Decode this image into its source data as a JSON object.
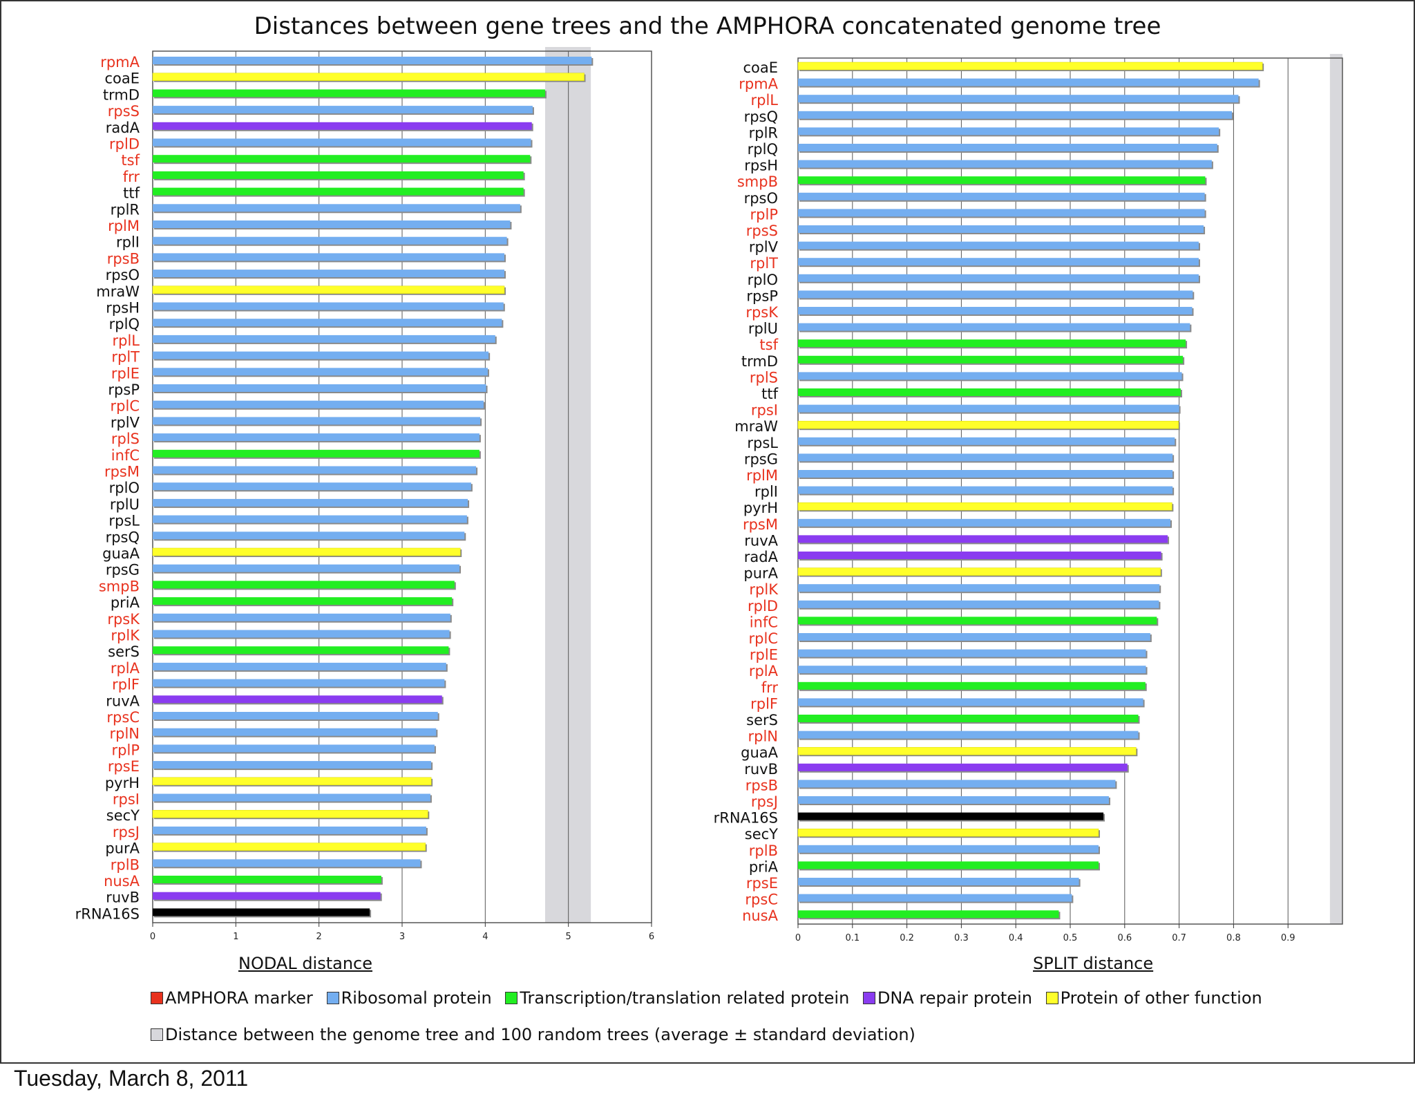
{
  "title": "Distances between gene trees and the AMPHORA concatenated genome tree",
  "colors": {
    "amphora_label": "#e8321e",
    "other_label": "#111111",
    "ribosomal": "#74aef0",
    "transcription": "#22ee22",
    "dna_repair": "#8a3cf0",
    "other_function": "#ffff2a",
    "rrna": "#000000",
    "random_band": "#d8d8dc"
  },
  "legend": {
    "row1": [
      {
        "label": "AMPHORA marker",
        "color": "#e8321e"
      },
      {
        "label": "Ribosomal protein",
        "color": "#74aef0"
      },
      {
        "label": "Transcription/translation related protein",
        "color": "#22ee22"
      },
      {
        "label": "DNA repair protein",
        "color": "#8a3cf0"
      },
      {
        "label": "Protein of other function",
        "color": "#ffff2a"
      }
    ],
    "row2": [
      {
        "label": "Distance between the genome tree and 100 random trees (average ± standard deviation)",
        "color": "#d8d8dc"
      }
    ]
  },
  "footer": {
    "date": "Tuesday, March 8, 2011"
  },
  "chart_data": [
    {
      "type": "bar",
      "orientation": "horizontal",
      "xlabel": "NODAL distance",
      "xlim": [
        0,
        6
      ],
      "xticks": [
        "0",
        "1",
        "2",
        "3",
        "4",
        "5",
        "6"
      ],
      "random_band": {
        "mean": 5.0,
        "low": 4.72,
        "high": 5.27
      },
      "bars": [
        {
          "gene": "rpmA",
          "value": 5.28,
          "cat": "ribosomal",
          "amphora": true
        },
        {
          "gene": "coaE",
          "value": 5.19,
          "cat": "other_function",
          "amphora": false
        },
        {
          "gene": "trmD",
          "value": 4.72,
          "cat": "transcription",
          "amphora": false
        },
        {
          "gene": "rpsS",
          "value": 4.57,
          "cat": "ribosomal",
          "amphora": true
        },
        {
          "gene": "radA",
          "value": 4.56,
          "cat": "dna_repair",
          "amphora": false
        },
        {
          "gene": "rplD",
          "value": 4.55,
          "cat": "ribosomal",
          "amphora": true
        },
        {
          "gene": "tsf",
          "value": 4.54,
          "cat": "transcription",
          "amphora": true
        },
        {
          "gene": "frr",
          "value": 4.46,
          "cat": "transcription",
          "amphora": true
        },
        {
          "gene": "ttf",
          "value": 4.46,
          "cat": "transcription",
          "amphora": false
        },
        {
          "gene": "rplR",
          "value": 4.42,
          "cat": "ribosomal",
          "amphora": false
        },
        {
          "gene": "rplM",
          "value": 4.3,
          "cat": "ribosomal",
          "amphora": true
        },
        {
          "gene": "rplI",
          "value": 4.26,
          "cat": "ribosomal",
          "amphora": false
        },
        {
          "gene": "rpsB",
          "value": 4.23,
          "cat": "ribosomal",
          "amphora": true
        },
        {
          "gene": "rpsO",
          "value": 4.23,
          "cat": "ribosomal",
          "amphora": false
        },
        {
          "gene": "mraW",
          "value": 4.23,
          "cat": "other_function",
          "amphora": false
        },
        {
          "gene": "rpsH",
          "value": 4.22,
          "cat": "ribosomal",
          "amphora": false
        },
        {
          "gene": "rplQ",
          "value": 4.2,
          "cat": "ribosomal",
          "amphora": false
        },
        {
          "gene": "rplL",
          "value": 4.12,
          "cat": "ribosomal",
          "amphora": true
        },
        {
          "gene": "rplT",
          "value": 4.04,
          "cat": "ribosomal",
          "amphora": true
        },
        {
          "gene": "rplE",
          "value": 4.03,
          "cat": "ribosomal",
          "amphora": true
        },
        {
          "gene": "rpsP",
          "value": 4.01,
          "cat": "ribosomal",
          "amphora": false
        },
        {
          "gene": "rplC",
          "value": 3.98,
          "cat": "ribosomal",
          "amphora": true
        },
        {
          "gene": "rplV",
          "value": 3.94,
          "cat": "ribosomal",
          "amphora": false
        },
        {
          "gene": "rplS",
          "value": 3.93,
          "cat": "ribosomal",
          "amphora": true
        },
        {
          "gene": "infC",
          "value": 3.93,
          "cat": "transcription",
          "amphora": true
        },
        {
          "gene": "rpsM",
          "value": 3.89,
          "cat": "ribosomal",
          "amphora": true
        },
        {
          "gene": "rplO",
          "value": 3.83,
          "cat": "ribosomal",
          "amphora": false
        },
        {
          "gene": "rplU",
          "value": 3.79,
          "cat": "ribosomal",
          "amphora": false
        },
        {
          "gene": "rpsL",
          "value": 3.78,
          "cat": "ribosomal",
          "amphora": false
        },
        {
          "gene": "rpsQ",
          "value": 3.75,
          "cat": "ribosomal",
          "amphora": false
        },
        {
          "gene": "guaA",
          "value": 3.7,
          "cat": "other_function",
          "amphora": false
        },
        {
          "gene": "rpsG",
          "value": 3.69,
          "cat": "ribosomal",
          "amphora": false
        },
        {
          "gene": "smpB",
          "value": 3.63,
          "cat": "transcription",
          "amphora": true
        },
        {
          "gene": "priA",
          "value": 3.6,
          "cat": "transcription",
          "amphora": false
        },
        {
          "gene": "rpsK",
          "value": 3.58,
          "cat": "ribosomal",
          "amphora": true
        },
        {
          "gene": "rplK",
          "value": 3.57,
          "cat": "ribosomal",
          "amphora": true
        },
        {
          "gene": "serS",
          "value": 3.56,
          "cat": "transcription",
          "amphora": false
        },
        {
          "gene": "rplA",
          "value": 3.53,
          "cat": "ribosomal",
          "amphora": true
        },
        {
          "gene": "rplF",
          "value": 3.51,
          "cat": "ribosomal",
          "amphora": true
        },
        {
          "gene": "ruvA",
          "value": 3.48,
          "cat": "dna_repair",
          "amphora": false
        },
        {
          "gene": "rpsC",
          "value": 3.43,
          "cat": "ribosomal",
          "amphora": true
        },
        {
          "gene": "rplN",
          "value": 3.41,
          "cat": "ribosomal",
          "amphora": true
        },
        {
          "gene": "rplP",
          "value": 3.39,
          "cat": "ribosomal",
          "amphora": true
        },
        {
          "gene": "rpsE",
          "value": 3.35,
          "cat": "ribosomal",
          "amphora": true
        },
        {
          "gene": "pyrH",
          "value": 3.35,
          "cat": "other_function",
          "amphora": false
        },
        {
          "gene": "rpsI",
          "value": 3.34,
          "cat": "ribosomal",
          "amphora": true
        },
        {
          "gene": "secY",
          "value": 3.31,
          "cat": "other_function",
          "amphora": false
        },
        {
          "gene": "rpsJ",
          "value": 3.29,
          "cat": "ribosomal",
          "amphora": true
        },
        {
          "gene": "purA",
          "value": 3.28,
          "cat": "other_function",
          "amphora": false
        },
        {
          "gene": "rplB",
          "value": 3.22,
          "cat": "ribosomal",
          "amphora": true
        },
        {
          "gene": "nusA",
          "value": 2.75,
          "cat": "transcription",
          "amphora": true
        },
        {
          "gene": "ruvB",
          "value": 2.74,
          "cat": "dna_repair",
          "amphora": false
        },
        {
          "gene": "rRNA16S",
          "value": 2.61,
          "cat": "rrna",
          "amphora": false
        }
      ]
    },
    {
      "type": "bar",
      "orientation": "horizontal",
      "xlabel": "SPLIT distance",
      "xlim": [
        0,
        1
      ],
      "xticks": [
        "0",
        "0.1",
        "0.2",
        "0.3",
        "0.4",
        "0.5",
        "0.6",
        "0.7",
        "0.8",
        "0.9"
      ],
      "random_band": {
        "mean": 0.99,
        "low": 0.977,
        "high": 1.0
      },
      "bars": [
        {
          "gene": "coaE",
          "value": 0.853,
          "cat": "other_function",
          "amphora": false
        },
        {
          "gene": "rpmA",
          "value": 0.846,
          "cat": "ribosomal",
          "amphora": true
        },
        {
          "gene": "rplL",
          "value": 0.809,
          "cat": "ribosomal",
          "amphora": true
        },
        {
          "gene": "rpsQ",
          "value": 0.797,
          "cat": "ribosomal",
          "amphora": false
        },
        {
          "gene": "rplR",
          "value": 0.773,
          "cat": "ribosomal",
          "amphora": false
        },
        {
          "gene": "rplQ",
          "value": 0.77,
          "cat": "ribosomal",
          "amphora": false
        },
        {
          "gene": "rpsH",
          "value": 0.76,
          "cat": "ribosomal",
          "amphora": false
        },
        {
          "gene": "smpB",
          "value": 0.748,
          "cat": "transcription",
          "amphora": true
        },
        {
          "gene": "rpsO",
          "value": 0.747,
          "cat": "ribosomal",
          "amphora": false
        },
        {
          "gene": "rplP",
          "value": 0.747,
          "cat": "ribosomal",
          "amphora": true
        },
        {
          "gene": "rpsS",
          "value": 0.745,
          "cat": "ribosomal",
          "amphora": true
        },
        {
          "gene": "rplV",
          "value": 0.736,
          "cat": "ribosomal",
          "amphora": false
        },
        {
          "gene": "rplT",
          "value": 0.736,
          "cat": "ribosomal",
          "amphora": true
        },
        {
          "gene": "rplO",
          "value": 0.736,
          "cat": "ribosomal",
          "amphora": false
        },
        {
          "gene": "rpsP",
          "value": 0.725,
          "cat": "ribosomal",
          "amphora": false
        },
        {
          "gene": "rpsK",
          "value": 0.724,
          "cat": "ribosomal",
          "amphora": true
        },
        {
          "gene": "rplU",
          "value": 0.72,
          "cat": "ribosomal",
          "amphora": false
        },
        {
          "gene": "tsf",
          "value": 0.712,
          "cat": "transcription",
          "amphora": true
        },
        {
          "gene": "trmD",
          "value": 0.707,
          "cat": "transcription",
          "amphora": false
        },
        {
          "gene": "rplS",
          "value": 0.705,
          "cat": "ribosomal",
          "amphora": true
        },
        {
          "gene": "ttf",
          "value": 0.703,
          "cat": "transcription",
          "amphora": false
        },
        {
          "gene": "rpsI",
          "value": 0.7,
          "cat": "ribosomal",
          "amphora": true
        },
        {
          "gene": "mraW",
          "value": 0.699,
          "cat": "other_function",
          "amphora": false
        },
        {
          "gene": "rpsL",
          "value": 0.692,
          "cat": "ribosomal",
          "amphora": false
        },
        {
          "gene": "rpsG",
          "value": 0.688,
          "cat": "ribosomal",
          "amphora": false
        },
        {
          "gene": "rplM",
          "value": 0.688,
          "cat": "ribosomal",
          "amphora": true
        },
        {
          "gene": "rplI",
          "value": 0.688,
          "cat": "ribosomal",
          "amphora": false
        },
        {
          "gene": "pyrH",
          "value": 0.687,
          "cat": "other_function",
          "amphora": false
        },
        {
          "gene": "rpsM",
          "value": 0.684,
          "cat": "ribosomal",
          "amphora": true
        },
        {
          "gene": "ruvA",
          "value": 0.679,
          "cat": "dna_repair",
          "amphora": false
        },
        {
          "gene": "radA",
          "value": 0.667,
          "cat": "dna_repair",
          "amphora": false
        },
        {
          "gene": "purA",
          "value": 0.666,
          "cat": "other_function",
          "amphora": false
        },
        {
          "gene": "rplK",
          "value": 0.664,
          "cat": "ribosomal",
          "amphora": true
        },
        {
          "gene": "rplD",
          "value": 0.663,
          "cat": "ribosomal",
          "amphora": true
        },
        {
          "gene": "infC",
          "value": 0.659,
          "cat": "transcription",
          "amphora": true
        },
        {
          "gene": "rplC",
          "value": 0.647,
          "cat": "ribosomal",
          "amphora": true
        },
        {
          "gene": "rplE",
          "value": 0.639,
          "cat": "ribosomal",
          "amphora": true
        },
        {
          "gene": "rplA",
          "value": 0.639,
          "cat": "ribosomal",
          "amphora": true
        },
        {
          "gene": "frr",
          "value": 0.638,
          "cat": "transcription",
          "amphora": true
        },
        {
          "gene": "rplF",
          "value": 0.634,
          "cat": "ribosomal",
          "amphora": true
        },
        {
          "gene": "serS",
          "value": 0.625,
          "cat": "transcription",
          "amphora": false
        },
        {
          "gene": "rplN",
          "value": 0.625,
          "cat": "ribosomal",
          "amphora": true
        },
        {
          "gene": "guaA",
          "value": 0.621,
          "cat": "other_function",
          "amphora": false
        },
        {
          "gene": "ruvB",
          "value": 0.605,
          "cat": "dna_repair",
          "amphora": false
        },
        {
          "gene": "rpsB",
          "value": 0.583,
          "cat": "ribosomal",
          "amphora": true
        },
        {
          "gene": "rpsJ",
          "value": 0.571,
          "cat": "ribosomal",
          "amphora": true
        },
        {
          "gene": "rRNA16S",
          "value": 0.561,
          "cat": "rrna",
          "amphora": false
        },
        {
          "gene": "secY",
          "value": 0.552,
          "cat": "other_function",
          "amphora": false
        },
        {
          "gene": "rplB",
          "value": 0.552,
          "cat": "ribosomal",
          "amphora": true
        },
        {
          "gene": "priA",
          "value": 0.552,
          "cat": "transcription",
          "amphora": false
        },
        {
          "gene": "rpsE",
          "value": 0.516,
          "cat": "ribosomal",
          "amphora": true
        },
        {
          "gene": "rpsC",
          "value": 0.503,
          "cat": "ribosomal",
          "amphora": true
        },
        {
          "gene": "nusA",
          "value": 0.479,
          "cat": "transcription",
          "amphora": true
        }
      ]
    }
  ]
}
